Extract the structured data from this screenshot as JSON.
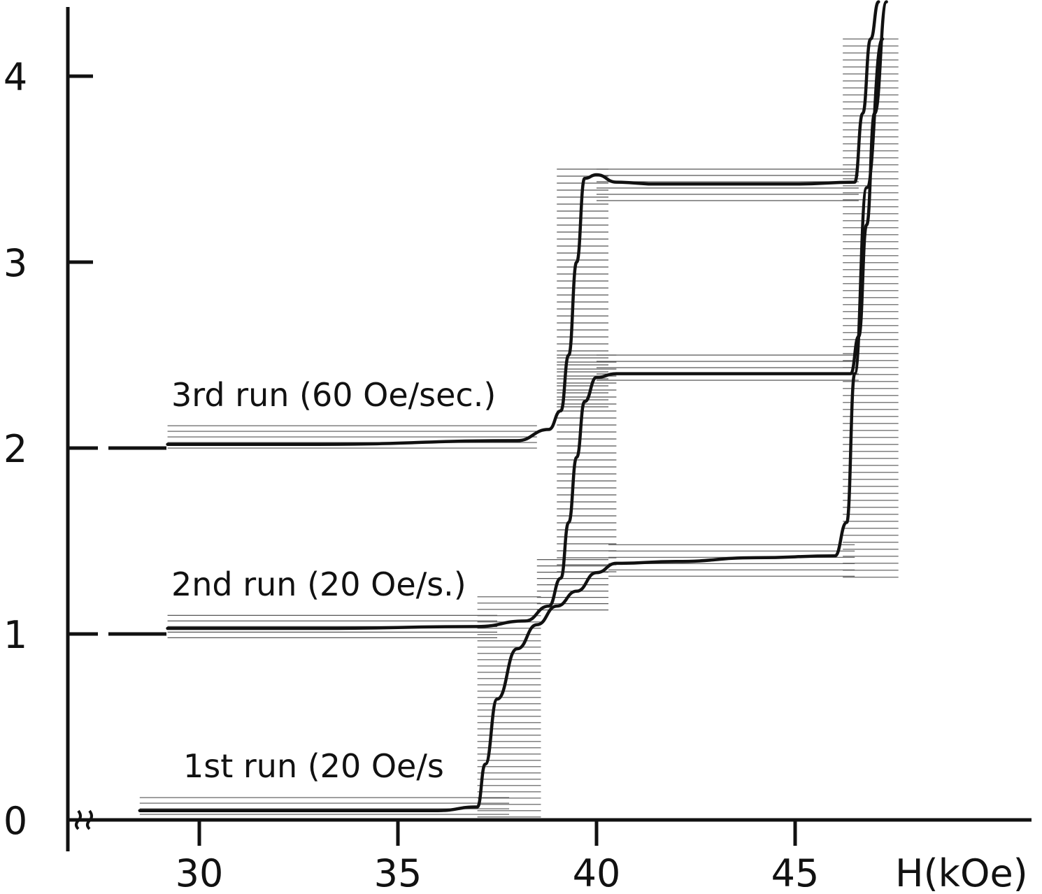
{
  "chart_data": {
    "type": "line",
    "title": "",
    "xlabel": "H(kOe)",
    "ylabel": "",
    "xlim": [
      26,
      50
    ],
    "ylim": [
      0,
      4.4
    ],
    "x_ticks": [
      30,
      35,
      40,
      45
    ],
    "x_tick_labels": [
      "30",
      "35",
      "40",
      "45"
    ],
    "y_ticks": [
      0,
      1,
      2,
      3,
      4
    ],
    "y_tick_labels": [
      "0",
      "1",
      "2",
      "3",
      "4"
    ],
    "axis_break": "x-axis broken near origin",
    "grid": false,
    "legend": "none; series labelled directly on plot",
    "series": [
      {
        "name": "1st run (20 Oe/s)",
        "offset": 0,
        "x": [
          28.5,
          33,
          36,
          37.0,
          37.2,
          37.5,
          38.0,
          38.5,
          39.0,
          39.5,
          40.0,
          40.5,
          42,
          44,
          46.0,
          46.3,
          46.5,
          46.8,
          47.2
        ],
        "y": [
          0.05,
          0.05,
          0.05,
          0.07,
          0.3,
          0.65,
          0.92,
          1.05,
          1.15,
          1.23,
          1.33,
          1.38,
          1.39,
          1.41,
          1.42,
          1.6,
          2.4,
          3.4,
          4.2
        ]
      },
      {
        "name": "2nd run (20 Oe/s.)",
        "offset": 1,
        "x": [
          29.2,
          33,
          37,
          38.2,
          38.8,
          39.1,
          39.3,
          39.5,
          39.7,
          40.0,
          40.5,
          43,
          46.4,
          46.6,
          46.8,
          47.0,
          47.3
        ],
        "y": [
          1.03,
          1.03,
          1.04,
          1.07,
          1.15,
          1.3,
          1.6,
          1.95,
          2.25,
          2.38,
          2.4,
          2.4,
          2.4,
          2.6,
          3.2,
          3.8,
          4.4
        ]
      },
      {
        "name": "3rd run (60 Oe/sec.)",
        "offset": 2,
        "x": [
          29.2,
          33,
          38.0,
          38.8,
          39.1,
          39.3,
          39.5,
          39.7,
          40.0,
          40.5,
          41.5,
          43,
          45,
          46.5,
          46.7,
          46.9,
          47.1
        ],
        "y": [
          2.02,
          2.02,
          2.04,
          2.1,
          2.2,
          2.5,
          3.0,
          3.45,
          3.47,
          3.43,
          3.42,
          3.42,
          3.42,
          3.43,
          3.8,
          4.2,
          4.4
        ]
      }
    ],
    "run_labels": {
      "run1": "1st run (20 Oe/s",
      "run2": "2nd run (20 Oe/s.)",
      "run3": "3rd run (60 Oe/sec.)"
    }
  }
}
